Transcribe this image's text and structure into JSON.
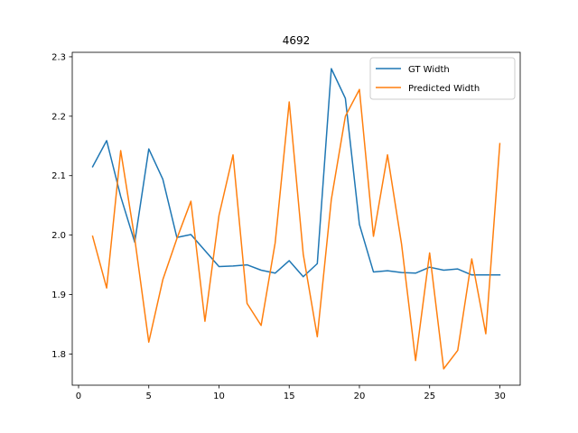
{
  "chart_data": {
    "type": "line",
    "title": "4692",
    "xlabel": "",
    "ylabel": "",
    "xlim": [
      -0.45,
      31.45
    ],
    "ylim": [
      1.7475,
      2.3075
    ],
    "xticks": [
      0,
      5,
      10,
      15,
      20,
      25,
      30
    ],
    "yticks": [
      1.8,
      1.9,
      2.0,
      2.1,
      2.2,
      2.3
    ],
    "xtick_labels": [
      "0",
      "5",
      "10",
      "15",
      "20",
      "25",
      "30"
    ],
    "ytick_labels": [
      "1.8",
      "1.9",
      "2.0",
      "2.1",
      "2.2",
      "2.3"
    ],
    "grid": false,
    "legend_position": "top-right",
    "x": [
      1,
      2,
      3,
      4,
      5,
      6,
      7,
      8,
      9,
      10,
      11,
      12,
      13,
      14,
      15,
      16,
      17,
      18,
      19,
      20,
      21,
      22,
      23,
      24,
      25,
      26,
      27,
      28,
      29,
      30
    ],
    "series": [
      {
        "name": "GT Width",
        "color": "#1f77b4",
        "values": [
          2.115,
          2.159,
          2.065,
          1.988,
          2.145,
          2.094,
          1.996,
          2.001,
          1.974,
          1.947,
          1.948,
          1.95,
          1.941,
          1.936,
          1.957,
          1.93,
          1.952,
          2.28,
          2.23,
          2.018,
          1.938,
          1.94,
          1.937,
          1.936,
          1.946,
          1.941,
          1.943,
          1.933,
          1.933,
          1.933
        ]
      },
      {
        "name": "Predicted Width",
        "color": "#ff7f0e",
        "values": [
          1.998,
          1.911,
          2.142,
          1.994,
          1.82,
          1.925,
          1.994,
          2.057,
          1.855,
          2.033,
          2.135,
          1.885,
          1.848,
          1.987,
          2.224,
          1.968,
          1.829,
          2.06,
          2.2,
          2.245,
          1.998,
          2.135,
          1.985,
          1.789,
          1.97,
          1.775,
          1.806,
          1.96,
          1.834,
          2.154
        ]
      }
    ]
  }
}
